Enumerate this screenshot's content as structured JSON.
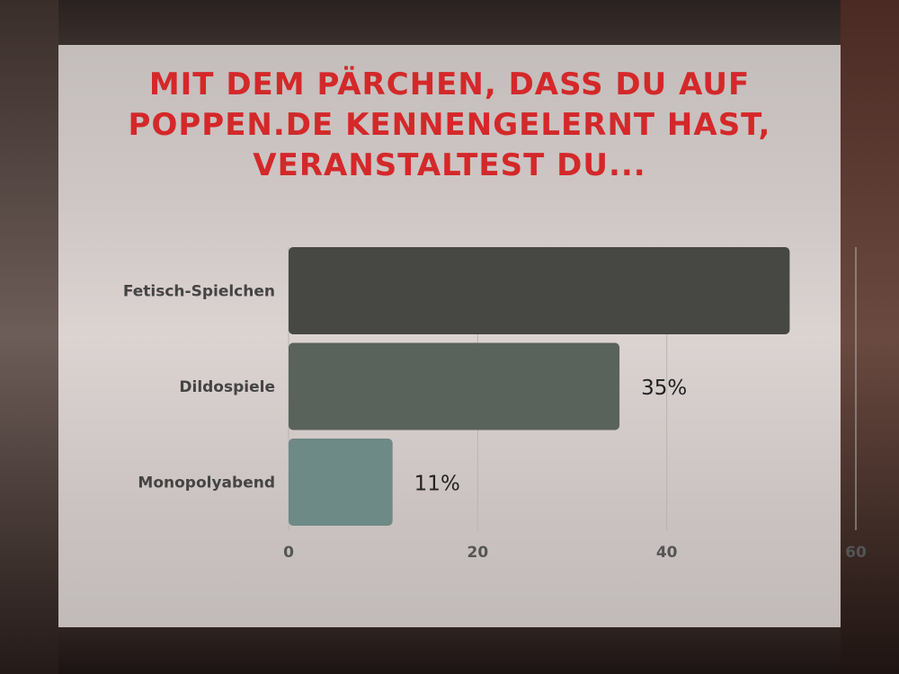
{
  "chart_data": {
    "type": "bar",
    "orientation": "horizontal",
    "title": "MIT DEM PÄRCHEN, DASS DU AUF POPPEN.DE KENNENGELERNT HAST, VERANSTALTEST DU...",
    "categories": [
      "Fetisch-Spielchen",
      "Dildospiele",
      "Monopolyabend"
    ],
    "values": [
      53,
      35,
      11
    ],
    "data_labels": [
      "",
      "35%",
      "11%"
    ],
    "colors": [
      "#474743",
      "#5a625c",
      "#6e8a86"
    ],
    "xticks": [
      "0",
      "20",
      "40",
      "60"
    ],
    "xlim": [
      0,
      60
    ],
    "grid": true,
    "title_color": "#d4282a"
  }
}
